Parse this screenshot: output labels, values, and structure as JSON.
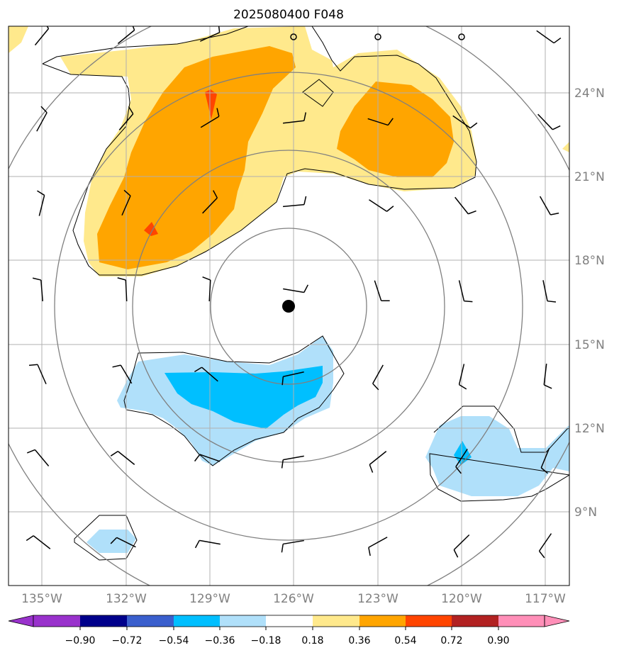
{
  "title": "2025080400 F048",
  "map": {
    "lon_labels": [
      "135°W",
      "132°W",
      "129°W",
      "126°W",
      "123°W",
      "120°W",
      "117°W"
    ],
    "lat_labels": [
      "24°N",
      "21°N",
      "18°N",
      "15°N",
      "12°N",
      "9°N"
    ],
    "center_marker": "storm-center"
  },
  "colorbar": {
    "labels": [
      "−0.90",
      "−0.72",
      "−0.54",
      "−0.36",
      "−0.18",
      "0.18",
      "0.36",
      "0.54",
      "0.72",
      "0.90"
    ],
    "colors": [
      "#9932cc",
      "#00008b",
      "#3a5fcd",
      "#00bfff",
      "#b0e0fa",
      "#ffffff",
      "#ffe98c",
      "#ffa500",
      "#ff4500",
      "#b22222",
      "#ff8fb8"
    ]
  },
  "fill_colors": {
    "pos1": "#ffe98c",
    "pos2": "#ffa500",
    "pos3": "#ff4500",
    "neg1": "#b0e0fa",
    "neg2": "#00bfff"
  }
}
